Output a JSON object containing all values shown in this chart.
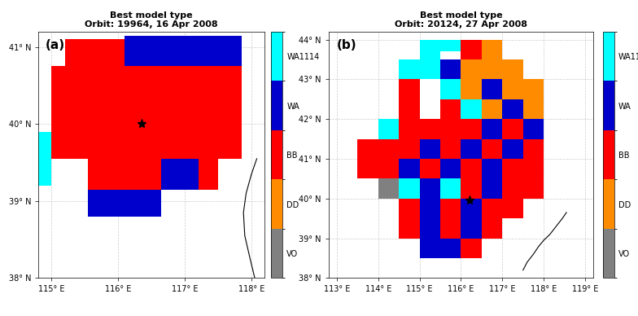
{
  "panel_a": {
    "title": "Best model type",
    "subtitle": "Orbit: 19964, 16 Apr 2008",
    "label": "(a)",
    "xlim": [
      114.8,
      118.2
    ],
    "ylim": [
      38.0,
      41.2
    ],
    "xticks": [
      115,
      116,
      117,
      118
    ],
    "yticks": [
      38,
      39,
      40,
      41
    ],
    "star_lon": 116.35,
    "star_lat": 40.0
  },
  "panel_b": {
    "title": "Best model type",
    "subtitle": "Orbit: 20124, 27 Apr 2008",
    "label": "(b)",
    "xlim": [
      112.8,
      119.2
    ],
    "ylim": [
      38.0,
      44.2
    ],
    "xticks": [
      113,
      114,
      115,
      116,
      117,
      118,
      119
    ],
    "yticks": [
      38,
      39,
      40,
      41,
      42,
      43,
      44
    ],
    "star_lon": 116.2,
    "star_lat": 39.95
  },
  "colorbar": {
    "labels": [
      "VO",
      "DD",
      "BB",
      "WA",
      "WA1114"
    ],
    "colors": [
      "#808080",
      "#FF8C00",
      "#FF0000",
      "#0000CC",
      "#00FFFF"
    ]
  },
  "color_map": {
    "VO": "#808080",
    "DD": "#FF8C00",
    "BB": "#FF0000",
    "WA": "#0000CC",
    "WA1114": "#00FFFF",
    "WHITE": "#FFFFFF"
  },
  "bg_color": "#ffffff",
  "grid_color": "#c0c0c0"
}
